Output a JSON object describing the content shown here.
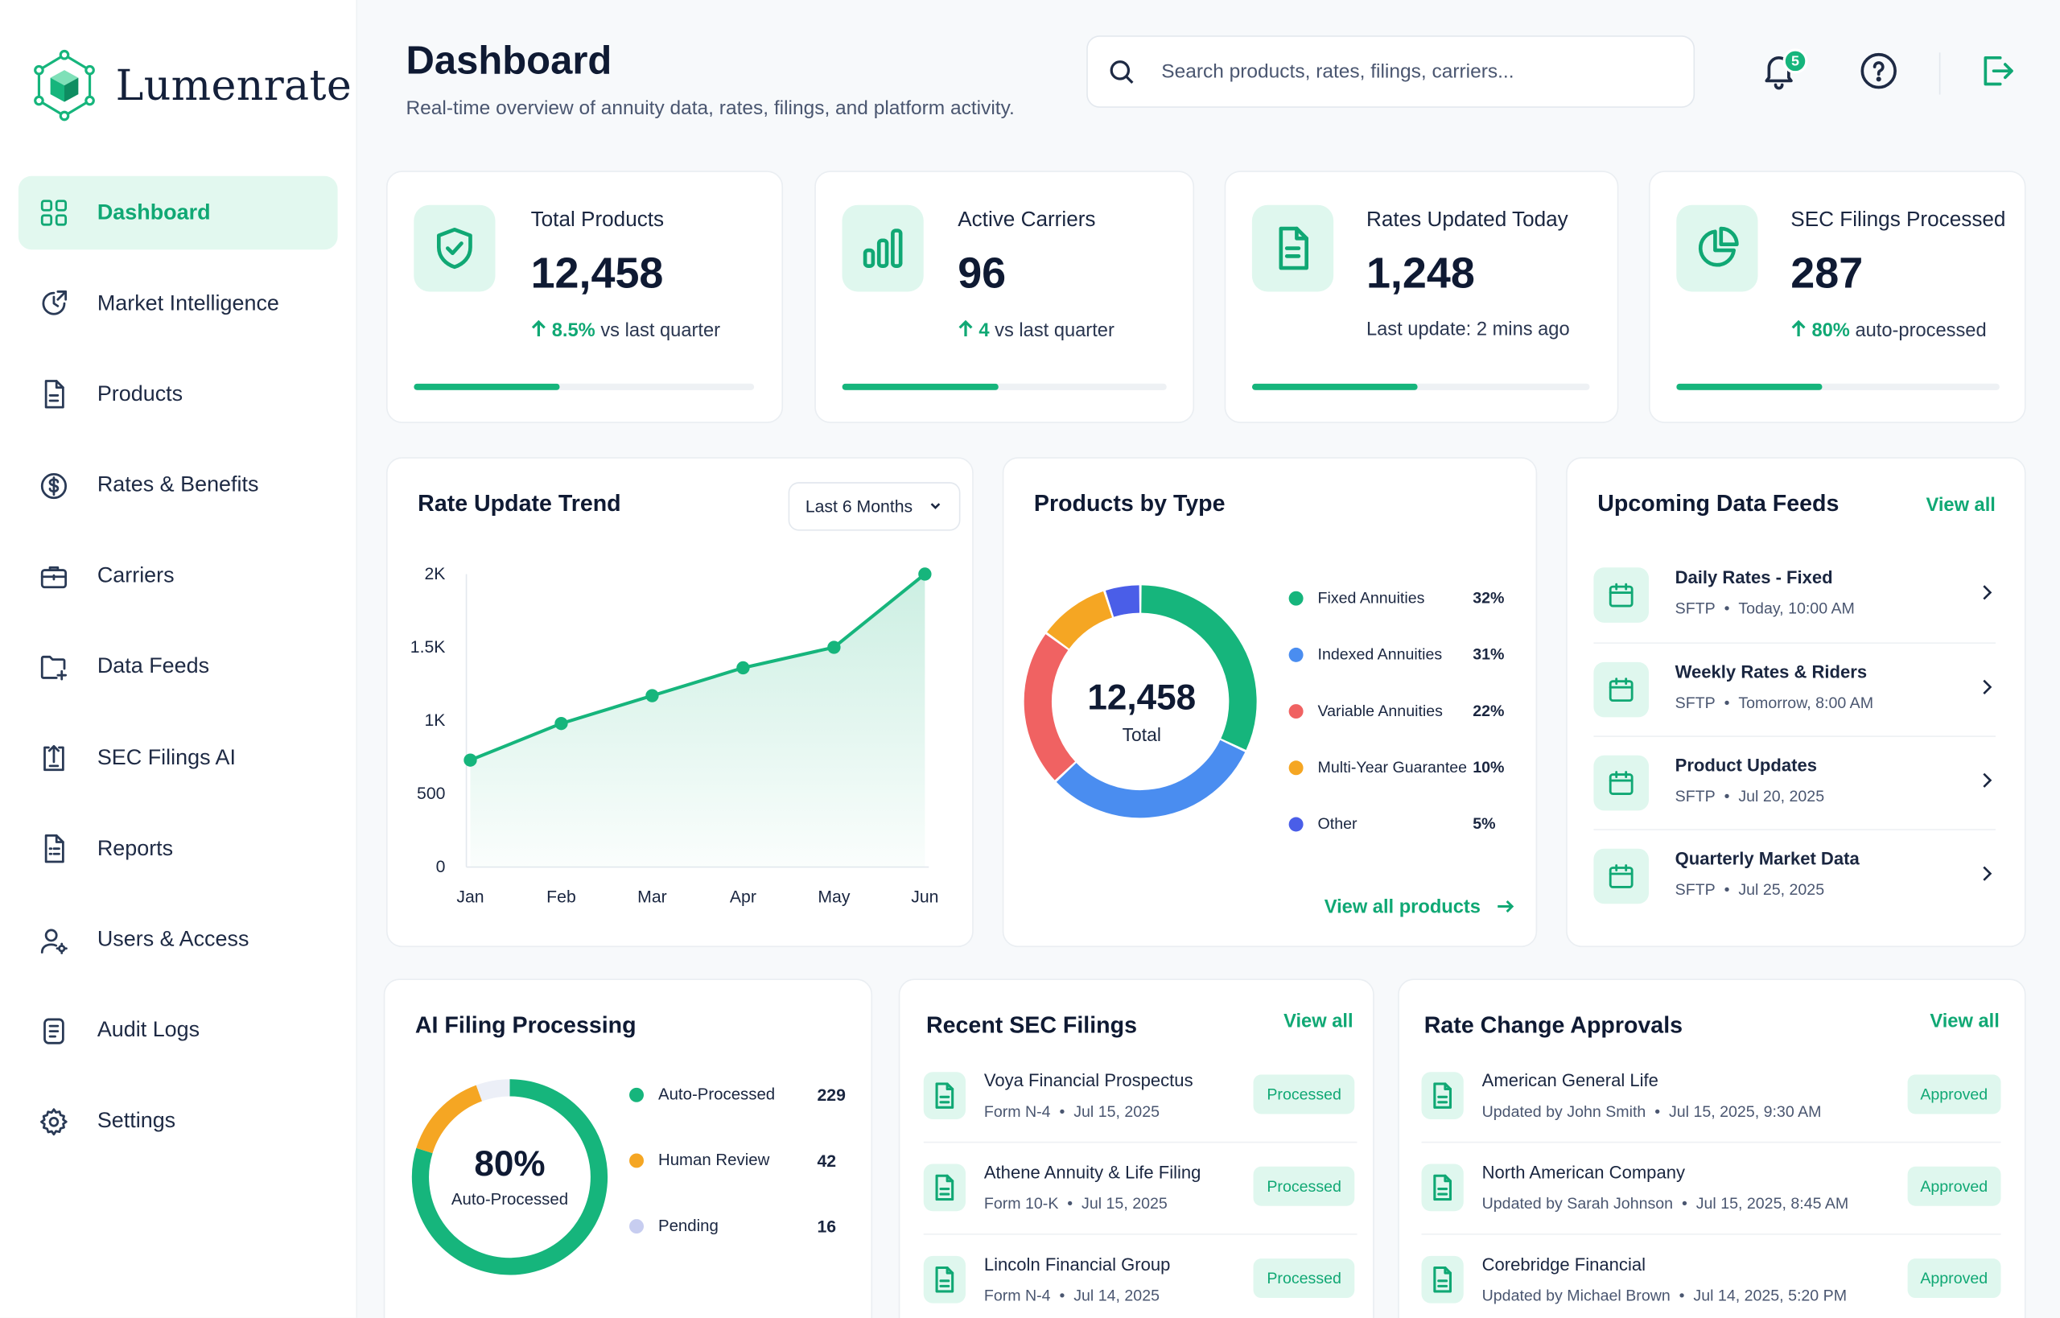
{
  "brand": {
    "name": "Lumenrate"
  },
  "colors": {
    "accent": "#16b57c",
    "accent_light": "#dff7ee",
    "blue": "#4a8df0",
    "red": "#f06262",
    "orange": "#f5a623",
    "indigo": "#4a5ee8",
    "grey": "#c7cdf0"
  },
  "nav": [
    {
      "label": "Dashboard",
      "icon": "grid-icon",
      "active": true
    },
    {
      "label": "Market Intelligence",
      "icon": "chart-clock-icon"
    },
    {
      "label": "Products",
      "icon": "document-icon"
    },
    {
      "label": "Rates & Benefits",
      "icon": "dollar-icon"
    },
    {
      "label": "Carriers",
      "icon": "briefcase-icon"
    },
    {
      "label": "Data Feeds",
      "icon": "folder-plus-icon"
    },
    {
      "label": "SEC Filings AI",
      "icon": "upload-doc-icon"
    },
    {
      "label": "Reports",
      "icon": "report-icon"
    },
    {
      "label": "Users & Access",
      "icon": "user-gear-icon"
    },
    {
      "label": "Audit Logs",
      "icon": "log-icon"
    },
    {
      "label": "Settings",
      "icon": "gear-icon"
    }
  ],
  "header": {
    "title": "Dashboard",
    "subtitle": "Real-time overview of annuity data, rates, filings, and platform activity.",
    "search_placeholder": "Search products, rates, filings, carriers...",
    "notification_count": "5"
  },
  "stats": [
    {
      "label": "Total Products",
      "value": "12,458",
      "delta": "8.5%",
      "foot": "vs last quarter",
      "progress": 0.43,
      "icon": "shield-check-icon"
    },
    {
      "label": "Active Carriers",
      "value": "96",
      "delta": "4",
      "foot": "vs last quarter",
      "progress": 0.48,
      "icon": "bar-chart-icon"
    },
    {
      "label": "Rates Updated Today",
      "value": "1,248",
      "delta": "",
      "foot": "Last update: 2 mins ago",
      "progress": 0.49,
      "icon": "file-text-icon"
    },
    {
      "label": "SEC Filings Processed",
      "value": "287",
      "delta": "80%",
      "foot": "auto-processed",
      "progress": 0.45,
      "icon": "pie-icon"
    }
  ],
  "rate_trend": {
    "title": "Rate Update Trend",
    "range_label": "Last 6 Months",
    "chart_data": {
      "type": "area",
      "title": "Rate Update Trend",
      "categories": [
        "Jan",
        "Feb",
        "Mar",
        "Apr",
        "May",
        "Jun"
      ],
      "values": [
        730,
        980,
        1170,
        1360,
        1500,
        2000
      ],
      "ylim": [
        0,
        2000
      ],
      "yticks": [
        "0",
        "500",
        "1K",
        "1.5K",
        "2K"
      ],
      "grid": false
    }
  },
  "products_by_type": {
    "title": "Products by Type",
    "total": "12,458",
    "total_label": "Total",
    "view_all": "View all products",
    "chart_data": {
      "type": "pie",
      "title": "Products by Type",
      "categories": [
        "Fixed Annuities",
        "Indexed Annuities",
        "Variable Annuities",
        "Multi-Year Guarantee",
        "Other"
      ],
      "values": [
        32,
        31,
        22,
        10,
        5
      ],
      "labels": [
        "32%",
        "31%",
        "22%",
        "10%",
        "5%"
      ],
      "legend": "right"
    }
  },
  "feeds": {
    "title": "Upcoming Data Feeds",
    "view_all": "View all",
    "items": [
      {
        "title": "Daily Rates - Fixed",
        "type": "SFTP",
        "when": "Today, 10:00 AM"
      },
      {
        "title": "Weekly Rates & Riders",
        "type": "SFTP",
        "when": "Tomorrow, 8:00 AM"
      },
      {
        "title": "Product Updates",
        "type": "SFTP",
        "when": "Jul 20, 2025"
      },
      {
        "title": "Quarterly Market Data",
        "type": "SFTP",
        "when": "Jul 25, 2025"
      }
    ]
  },
  "ai_filing": {
    "title": "AI Filing Processing",
    "center_value": "80%",
    "center_label": "Auto-Processed",
    "chart_data": {
      "type": "pie",
      "title": "AI Filing Processing",
      "categories": [
        "Auto-Processed",
        "Human Review",
        "Pending"
      ],
      "values": [
        229,
        42,
        16
      ],
      "labels": [
        "229",
        "42",
        "16"
      ],
      "legend": "right"
    }
  },
  "sec_filings": {
    "title": "Recent SEC Filings",
    "view_all": "View all",
    "items": [
      {
        "title": "Voya Financial Prospectus",
        "form": "Form N-4",
        "date": "Jul 15, 2025",
        "status": "Processed"
      },
      {
        "title": "Athene Annuity & Life Filing",
        "form": "Form 10-K",
        "date": "Jul 15, 2025",
        "status": "Processed"
      },
      {
        "title": "Lincoln Financial Group",
        "form": "Form N-4",
        "date": "Jul 14, 2025",
        "status": "Processed"
      }
    ]
  },
  "approvals": {
    "title": "Rate Change Approvals",
    "view_all": "View all",
    "items": [
      {
        "title": "American General Life",
        "by": "Updated by John Smith",
        "when": "Jul 15, 2025, 9:30 AM",
        "status": "Approved"
      },
      {
        "title": "North American Company",
        "by": "Updated by Sarah Johnson",
        "when": "Jul 15, 2025, 8:45 AM",
        "status": "Approved"
      },
      {
        "title": "Corebridge Financial",
        "by": "Updated by Michael Brown",
        "when": "Jul 14, 2025, 5:20 PM",
        "status": "Approved"
      }
    ]
  }
}
